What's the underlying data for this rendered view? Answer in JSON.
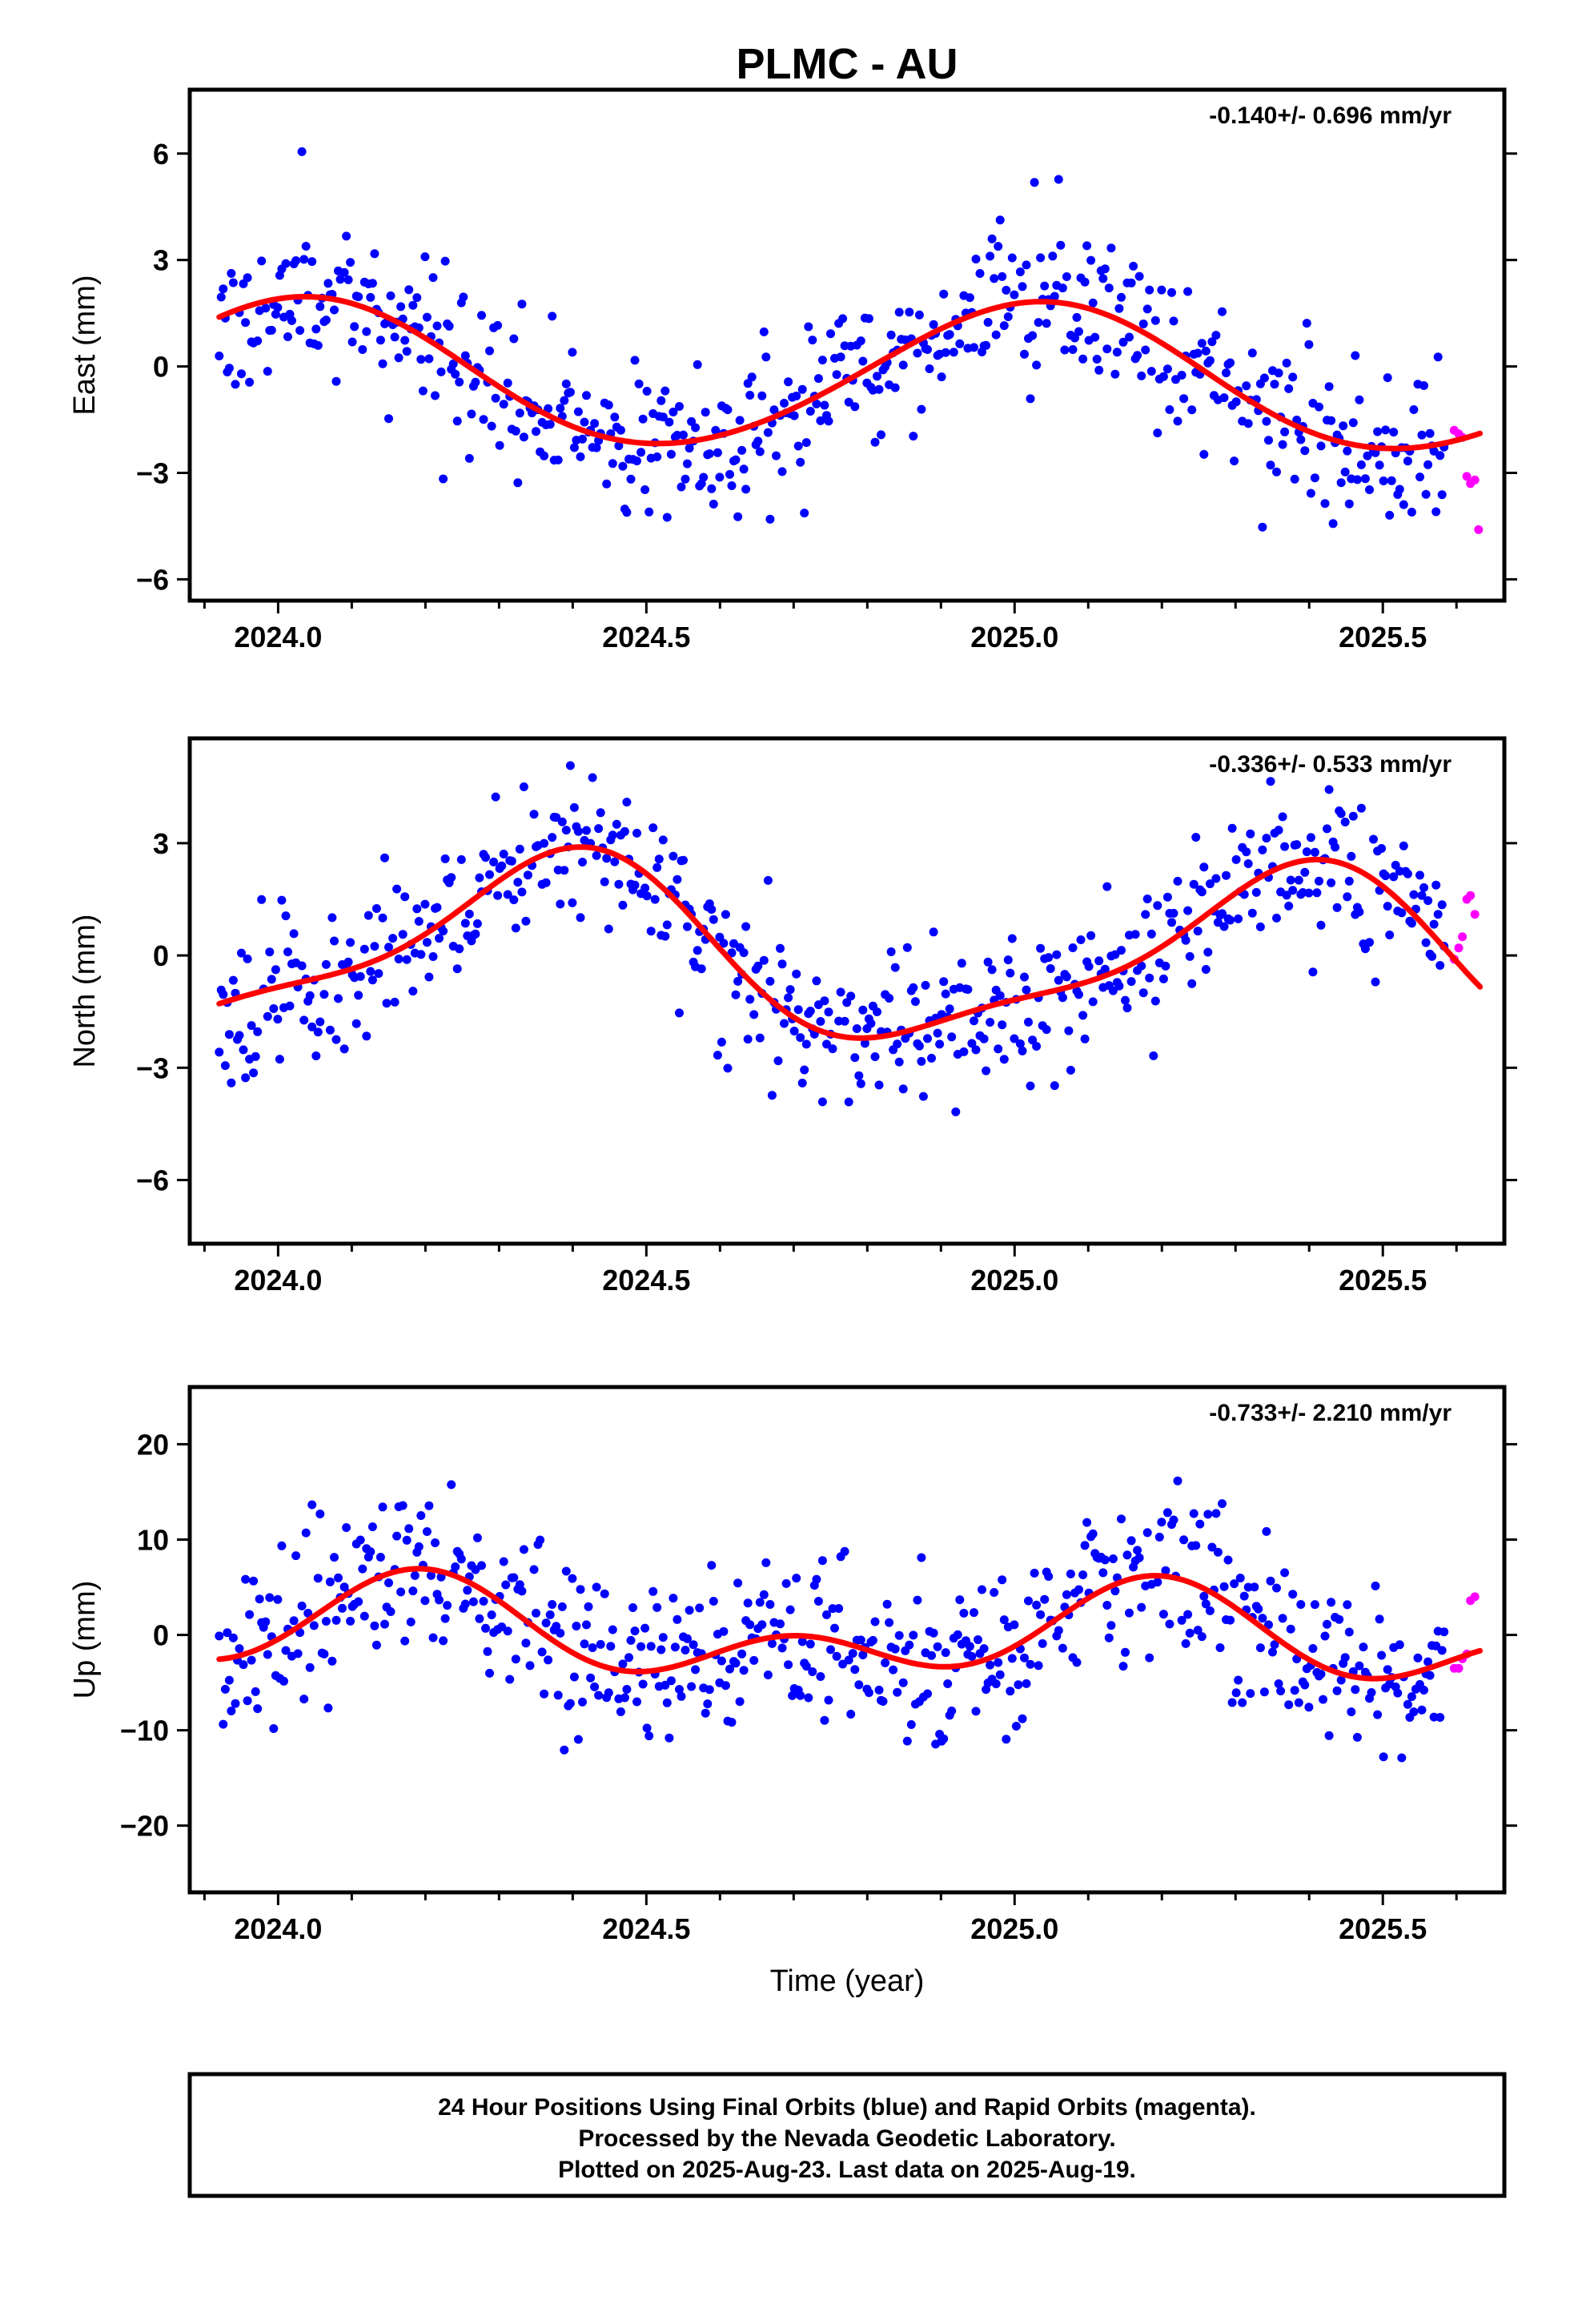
{
  "title": "PLMC - AU",
  "xlabel": "Time (year)",
  "footer": {
    "line1": "24 Hour Positions Using Final Orbits (blue) and Rapid Orbits (magenta).",
    "line2": "Processed by the Nevada Geodetic Laboratory.",
    "line3": "Plotted on 2025-Aug-23. Last data on 2025-Aug-19."
  },
  "colors": {
    "final": "#0000ff",
    "rapid": "#ff00ff",
    "fit": "#ff0000",
    "axis": "#000000"
  },
  "chart_data": [
    {
      "type": "scatter",
      "ylabel": "East (mm)",
      "rate_text": "-0.140+/- 0.696 mm/yr",
      "xlim": [
        2023.88,
        2025.665
      ],
      "ylim": [
        -6.6,
        7.8
      ],
      "xticks": [
        2024.0,
        2024.5,
        2025.0,
        2025.5
      ],
      "xtick_labels": [
        "2024.0",
        "2024.5",
        "2025.0",
        "2025.5"
      ],
      "yticks": [
        -6,
        -3,
        0,
        3,
        6
      ],
      "ytick_labels": [
        "−6",
        "−3",
        "0",
        "3",
        "6"
      ],
      "fit": {
        "mean": -0.25,
        "trend": -0.14,
        "t0": 2024.75,
        "ann_cos": 2.0,
        "ann_sin": 0.35,
        "semi_cos": 0.05,
        "semi_sin": 0.1
      },
      "final_series": {
        "t_start": 2023.92,
        "t_end": 2025.585,
        "step": 0.00274,
        "noise": 1.15,
        "seed": 11
      },
      "rapid_points": [
        [
          2025.597,
          -1.8
        ],
        [
          2025.603,
          -1.9
        ],
        [
          2025.608,
          -2.0
        ],
        [
          2025.614,
          -3.1
        ],
        [
          2025.619,
          -3.3
        ],
        [
          2025.625,
          -3.2
        ],
        [
          2025.63,
          -4.6
        ]
      ]
    },
    {
      "type": "scatter",
      "ylabel": "North (mm)",
      "rate_text": "-0.336+/- 0.533 mm/yr",
      "xlim": [
        2023.88,
        2025.665
      ],
      "ylim": [
        -7.7,
        5.8
      ],
      "xticks": [
        2024.0,
        2024.5,
        2025.0,
        2025.5
      ],
      "xtick_labels": [
        "2024.0",
        "2024.5",
        "2025.0",
        "2025.5"
      ],
      "yticks": [
        -6,
        -3,
        0,
        3
      ],
      "ytick_labels": [
        "−6",
        "−3",
        "0",
        "3"
      ],
      "fit": {
        "mean": 0.0,
        "trend": -0.336,
        "t0": 2024.75,
        "ann_cos": -1.6,
        "ann_sin": 1.6,
        "semi_cos": 0.5,
        "semi_sin": -0.4
      },
      "final_series": {
        "t_start": 2023.92,
        "t_end": 2025.585,
        "step": 0.00274,
        "noise": 1.0,
        "seed": 23
      },
      "rapid_points": [
        [
          2025.597,
          -0.1
        ],
        [
          2025.603,
          0.2
        ],
        [
          2025.608,
          0.5
        ],
        [
          2025.614,
          1.5
        ],
        [
          2025.619,
          1.6
        ],
        [
          2025.625,
          1.1
        ]
      ]
    },
    {
      "type": "scatter",
      "ylabel": "Up (mm)",
      "rate_text": "-0.733+/- 2.210 mm/yr",
      "xlim": [
        2023.88,
        2025.665
      ],
      "ylim": [
        -27,
        26
      ],
      "xticks": [
        2024.0,
        2024.5,
        2025.0,
        2025.5
      ],
      "xtick_labels": [
        "2024.0",
        "2024.5",
        "2025.0",
        "2025.5"
      ],
      "yticks": [
        -20,
        -10,
        0,
        10,
        20
      ],
      "ytick_labels": [
        "−20",
        "−10",
        "0",
        "10",
        "20"
      ],
      "fit": {
        "mean": 0.0,
        "trend": -0.733,
        "t0": 2024.75,
        "ann_cos": 1.5,
        "ann_sin": 3.0,
        "semi_cos": -2.5,
        "semi_sin": 2.0
      },
      "final_series": {
        "t_start": 2023.92,
        "t_end": 2025.585,
        "step": 0.00274,
        "noise": 4.5,
        "seed": 37
      },
      "rapid_points": [
        [
          2025.597,
          -3.5
        ],
        [
          2025.603,
          -3.5
        ],
        [
          2025.608,
          -2.5
        ],
        [
          2025.614,
          -2.0
        ],
        [
          2025.619,
          3.6
        ],
        [
          2025.625,
          4.0
        ]
      ]
    }
  ]
}
